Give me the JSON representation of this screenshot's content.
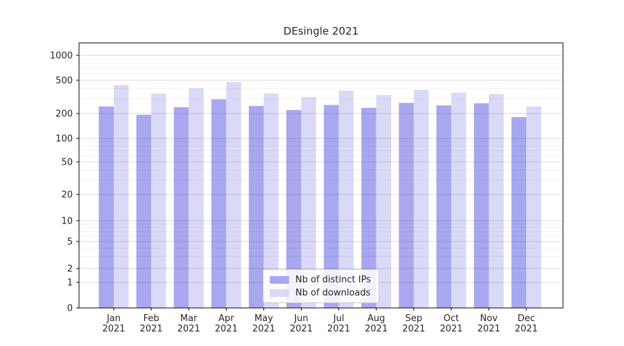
{
  "title": "DEsingle 2021",
  "colors": {
    "background": "#ffffff",
    "bar_distinct_ips": "#a8a8f0",
    "bar_downloads": "#dadaf8",
    "spine": "#000000",
    "tick_text": "#262626",
    "grid_major": "rgba(0,0,0,0.14)",
    "grid_minor": "rgba(0,0,0,0.055)",
    "legend_border": "#cccccc",
    "legend_background": "rgba(255,255,255,0.85)"
  },
  "chart_data": {
    "type": "bar",
    "title": "DEsingle 2021",
    "categories": [
      "Jan",
      "Feb",
      "Mar",
      "Apr",
      "May",
      "Jun",
      "Jul",
      "Aug",
      "Sep",
      "Oct",
      "Nov",
      "Dec"
    ],
    "category_year": "2021",
    "series": [
      {
        "name": "Nb of distinct IPs",
        "color": "#a8a8f0",
        "values": [
          243,
          193,
          238,
          296,
          246,
          220,
          253,
          234,
          268,
          250,
          265,
          181
        ]
      },
      {
        "name": "Nb of downloads",
        "color": "#dadaf8",
        "values": [
          440,
          346,
          400,
          478,
          348,
          315,
          376,
          333,
          384,
          355,
          343,
          243
        ]
      }
    ],
    "xlabel": "",
    "ylabel": "",
    "yscale": "symlog",
    "yticks": [
      0,
      1,
      2,
      5,
      10,
      20,
      50,
      100,
      200,
      500,
      1000
    ],
    "yticks_minor": [
      3,
      4,
      6,
      7,
      8,
      9,
      30,
      40,
      60,
      70,
      80,
      90,
      300,
      400,
      600,
      700,
      800,
      900
    ],
    "ylim": [
      0,
      1400
    ],
    "grid": true,
    "legend_position": "lower center"
  }
}
